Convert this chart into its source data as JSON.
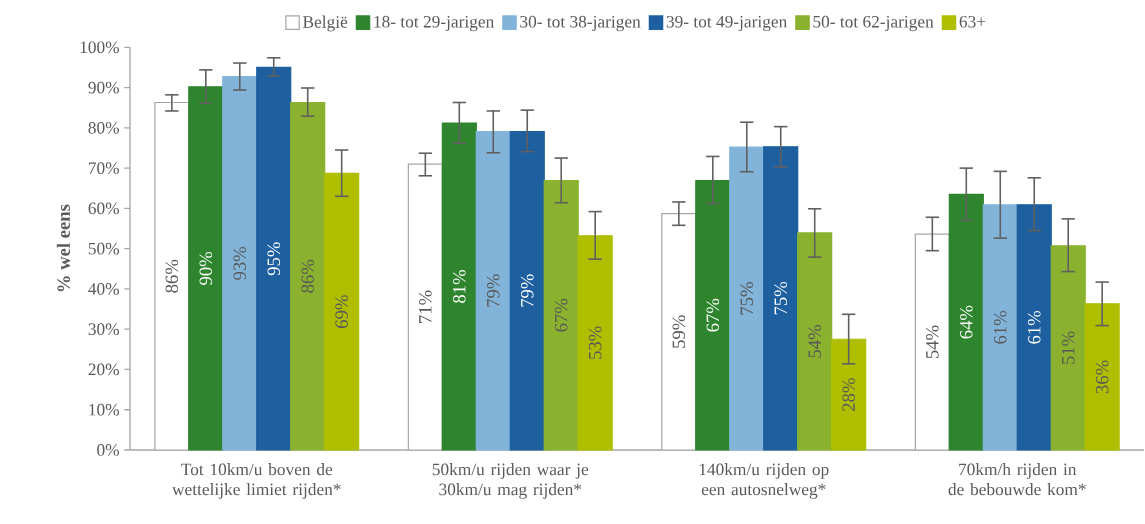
{
  "chart_data": {
    "type": "bar",
    "ylabel": "% wel eens",
    "categories": [
      "Tot 10km/u boven de wettelijke limiet rijden*",
      "50km/u rijden waar je 30km/u mag rijden*",
      "140km/u rijden op een autosnelweg*",
      "70km/h rijden in de bebouwde kom*"
    ],
    "series": [
      {
        "name": "België",
        "color": "#ffffff",
        "values": [
          86.3,
          71.0,
          58.7,
          53.6
        ],
        "errors": [
          [
            84.2,
            88.2
          ],
          [
            68.1,
            73.7
          ],
          [
            55.8,
            61.6
          ],
          [
            49.5,
            57.8
          ]
        ],
        "value_labels": [
          "86%",
          "71%",
          "59%",
          "54%"
        ]
      },
      {
        "name": "18- tot 29-jarigen",
        "color": "#2e852e",
        "values": [
          90.2,
          81.2,
          66.9,
          63.5
        ],
        "errors": [
          [
            86.1,
            94.4
          ],
          [
            76.2,
            86.3
          ],
          [
            61.2,
            72.9
          ],
          [
            57.0,
            70.0
          ]
        ],
        "value_labels": [
          "90%",
          "81%",
          "67%",
          "64%"
        ]
      },
      {
        "name": "30- tot 38-jarigen",
        "color": "#82b4da",
        "values": [
          92.7,
          79.1,
          75.2,
          60.9
        ],
        "errors": [
          [
            89.4,
            96.1
          ],
          [
            73.8,
            84.2
          ],
          [
            69.1,
            81.4
          ],
          [
            52.6,
            69.2
          ]
        ],
        "value_labels": [
          "93%",
          "79%",
          "75%",
          "61%"
        ]
      },
      {
        "name": "39- tot 49-jarigen",
        "color": "#1d5f9f",
        "values": [
          95.0,
          79.1,
          75.3,
          60.9
        ],
        "errors": [
          [
            92.9,
            97.4
          ],
          [
            74.1,
            84.4
          ],
          [
            70.3,
            80.3
          ],
          [
            54.5,
            67.6
          ]
        ],
        "value_labels": [
          "95%",
          "79%",
          "75%",
          "61%"
        ]
      },
      {
        "name": "50- tot 62-jarigen",
        "color": "#8ab22e",
        "values": [
          86.3,
          66.9,
          53.9,
          50.7
        ],
        "errors": [
          [
            82.9,
            89.9
          ],
          [
            61.4,
            72.5
          ],
          [
            47.9,
            59.9
          ],
          [
            44.3,
            57.4
          ]
        ],
        "value_labels": [
          "86%",
          "67%",
          "54%",
          "51%"
        ]
      },
      {
        "name": "63+",
        "color": "#afbf00",
        "values": [
          68.7,
          53.2,
          27.5,
          36.3
        ],
        "errors": [
          [
            63.0,
            74.5
          ],
          [
            47.4,
            59.2
          ],
          [
            21.4,
            33.7
          ],
          [
            30.9,
            41.7
          ]
        ],
        "value_labels": [
          "69%",
          "53%",
          "28%",
          "36%"
        ]
      }
    ],
    "ylim": [
      0,
      100
    ],
    "yticks": [
      {
        "value": 0,
        "label": "0%"
      },
      {
        "value": 10,
        "label": "10%"
      },
      {
        "value": 20,
        "label": "20%"
      },
      {
        "value": 30,
        "label": "30%"
      },
      {
        "value": 40,
        "label": "40%"
      },
      {
        "value": 50,
        "label": "50%"
      },
      {
        "value": 60,
        "label": "60%"
      },
      {
        "value": 70,
        "label": "70%"
      },
      {
        "value": 80,
        "label": "80%"
      },
      {
        "value": 90,
        "label": "90%"
      },
      {
        "value": 100,
        "label": "100%"
      }
    ],
    "grid": false,
    "legend": "top"
  }
}
